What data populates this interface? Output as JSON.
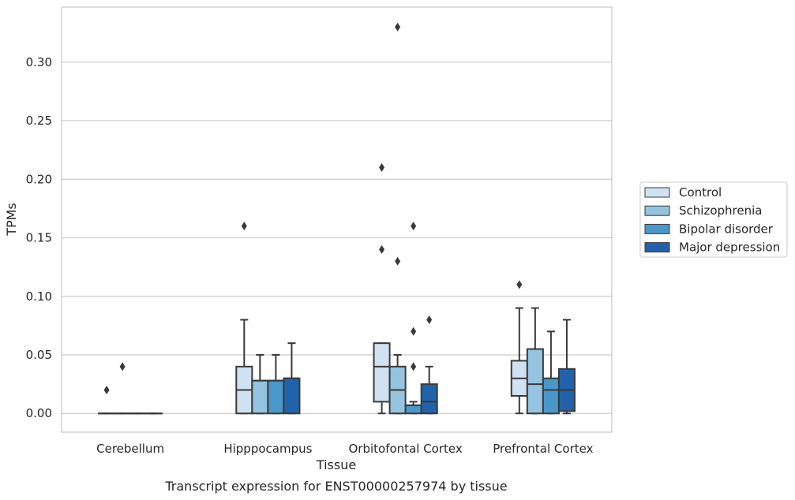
{
  "chart_data": {
    "type": "box",
    "caption": "Transcript expression for ENST00000257974 by tissue",
    "xlabel": "Tissue",
    "ylabel": "TPMs",
    "ylim": [
      -0.016,
      0.347
    ],
    "yticks": [
      0.0,
      0.05,
      0.1,
      0.15,
      0.2,
      0.25,
      0.3
    ],
    "ytick_labels": [
      "0.00",
      "0.05",
      "0.10",
      "0.15",
      "0.20",
      "0.25",
      "0.30"
    ],
    "categories": [
      "Cerebellum",
      "Hipppocampus",
      "Orbitofontal Cortex",
      "Prefrontal Cortex"
    ],
    "grid": "horizontal",
    "legend_position": "right",
    "series": [
      {
        "name": "Control",
        "color": "#d0e1f2",
        "boxes": [
          {
            "whislo": 0.0,
            "q1": 0.0,
            "med": 0.0,
            "q3": 0.0,
            "whishi": 0.0,
            "fliers": [
              0.02
            ]
          },
          {
            "whislo": 0.0,
            "q1": 0.0,
            "med": 0.02,
            "q3": 0.04,
            "whishi": 0.08,
            "fliers": [
              0.16
            ]
          },
          {
            "whislo": 0.0,
            "q1": 0.01,
            "med": 0.04,
            "q3": 0.06,
            "whishi": 0.06,
            "fliers": [
              0.21,
              0.14
            ]
          },
          {
            "whislo": 0.0,
            "q1": 0.015,
            "med": 0.03,
            "q3": 0.045,
            "whishi": 0.09,
            "fliers": [
              0.11
            ]
          }
        ]
      },
      {
        "name": "Schizophrenia",
        "color": "#94c4df",
        "boxes": [
          {
            "whislo": 0.0,
            "q1": 0.0,
            "med": 0.0,
            "q3": 0.0,
            "whishi": 0.0,
            "fliers": [
              0.04
            ]
          },
          {
            "whislo": 0.0,
            "q1": 0.0,
            "med": 0.028,
            "q3": 0.028,
            "whishi": 0.05,
            "fliers": []
          },
          {
            "whislo": 0.0,
            "q1": 0.0,
            "med": 0.02,
            "q3": 0.04,
            "whishi": 0.05,
            "fliers": [
              0.33,
              0.13
            ]
          },
          {
            "whislo": 0.0,
            "q1": 0.0,
            "med": 0.025,
            "q3": 0.055,
            "whishi": 0.09,
            "fliers": []
          }
        ]
      },
      {
        "name": "Bipolar disorder",
        "color": "#4a98c9",
        "boxes": [
          {
            "whislo": 0.0,
            "q1": 0.0,
            "med": 0.0,
            "q3": 0.0,
            "whishi": 0.0,
            "fliers": []
          },
          {
            "whislo": 0.0,
            "q1": 0.0,
            "med": 0.028,
            "q3": 0.028,
            "whishi": 0.05,
            "fliers": []
          },
          {
            "whislo": 0.0,
            "q1": 0.0,
            "med": 0.007,
            "q3": 0.007,
            "whishi": 0.01,
            "fliers": [
              0.16,
              0.07,
              0.04
            ]
          },
          {
            "whislo": 0.0,
            "q1": 0.0,
            "med": 0.02,
            "q3": 0.03,
            "whishi": 0.07,
            "fliers": []
          }
        ]
      },
      {
        "name": "Major depression",
        "color": "#2163aa",
        "boxes": [
          {
            "whislo": 0.0,
            "q1": 0.0,
            "med": 0.0,
            "q3": 0.0,
            "whishi": 0.0,
            "fliers": []
          },
          {
            "whislo": 0.0,
            "q1": 0.0,
            "med": 0.03,
            "q3": 0.03,
            "whishi": 0.06,
            "fliers": []
          },
          {
            "whislo": 0.0,
            "q1": 0.0,
            "med": 0.01,
            "q3": 0.025,
            "whishi": 0.04,
            "fliers": [
              0.08
            ]
          },
          {
            "whislo": 0.0,
            "q1": 0.002,
            "med": 0.02,
            "q3": 0.038,
            "whishi": 0.08,
            "fliers": []
          }
        ]
      }
    ],
    "colors": {
      "grid": "#cccccc",
      "frame": "#cccccc",
      "box_edge": "#3a3a3a"
    }
  }
}
